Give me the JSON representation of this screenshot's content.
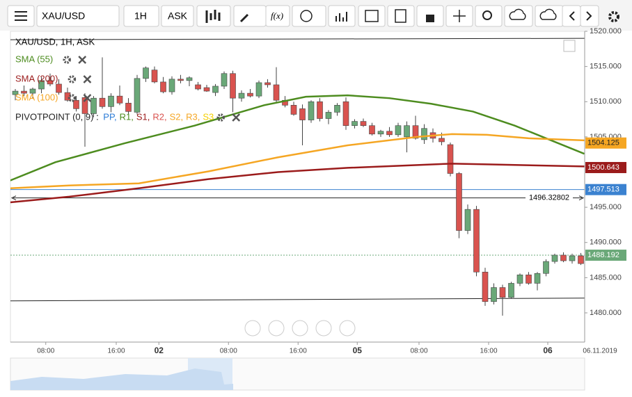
{
  "toolbar": {
    "symbol": "XAU/USD",
    "interval": "1H",
    "side": "ASK",
    "fx": "f(x)"
  },
  "chart_data": {
    "type": "candlestick",
    "title": "XAU/USD, 1H, ASK",
    "up_color": "#6aa878",
    "down_color": "#d9534f",
    "candles": [
      [
        1511.0,
        1511.8,
        1510.2,
        1511.5
      ],
      [
        1511.5,
        1512.3,
        1510.8,
        1511.2
      ],
      [
        1511.2,
        1512.0,
        1510.5,
        1511.8
      ],
      [
        1511.8,
        1513.5,
        1511.2,
        1513.0
      ],
      [
        1513.0,
        1514.0,
        1512.2,
        1512.5
      ],
      [
        1512.5,
        1513.2,
        1511.0,
        1511.3
      ],
      [
        1511.3,
        1512.0,
        1510.0,
        1510.2
      ],
      [
        1510.2,
        1510.8,
        1508.6,
        1509.0
      ],
      [
        1510.6,
        1511.2,
        1503.6,
        1508.3
      ],
      [
        1508.3,
        1510.8,
        1507.8,
        1510.5
      ],
      [
        1510.5,
        1516.3,
        1509.0,
        1509.3
      ],
      [
        1509.3,
        1511.2,
        1508.5,
        1510.8
      ],
      [
        1510.8,
        1512.3,
        1509.5,
        1509.8
      ],
      [
        1509.8,
        1510.5,
        1508.2,
        1508.6
      ],
      [
        1508.5,
        1513.8,
        1508.2,
        1513.3
      ],
      [
        1513.3,
        1515.0,
        1512.8,
        1514.8
      ],
      [
        1514.5,
        1515.0,
        1512.6,
        1512.8
      ],
      [
        1512.8,
        1513.5,
        1511.2,
        1511.4
      ],
      [
        1511.4,
        1513.6,
        1511.0,
        1513.2
      ],
      [
        1513.2,
        1513.8,
        1512.6,
        1513.0
      ],
      [
        1513.0,
        1513.6,
        1512.2,
        1513.4
      ],
      [
        1512.4,
        1512.8,
        1511.6,
        1511.8
      ],
      [
        1512.0,
        1512.4,
        1511.4,
        1511.5
      ],
      [
        1511.3,
        1512.5,
        1510.8,
        1512.2
      ],
      [
        1512.2,
        1514.3,
        1511.8,
        1514.0
      ],
      [
        1514.0,
        1514.4,
        1508.5,
        1510.5
      ],
      [
        1510.5,
        1511.6,
        1510.0,
        1511.2
      ],
      [
        1511.2,
        1511.8,
        1510.6,
        1510.8
      ],
      [
        1510.8,
        1513.0,
        1510.5,
        1512.7
      ],
      [
        1512.7,
        1513.2,
        1512.0,
        1512.4
      ],
      [
        1512.4,
        1514.9,
        1509.8,
        1510.2
      ],
      [
        1510.2,
        1510.8,
        1509.2,
        1509.5
      ],
      [
        1509.5,
        1510.0,
        1508.0,
        1508.2
      ],
      [
        1509.0,
        1509.6,
        1503.8,
        1507.4
      ],
      [
        1507.4,
        1510.2,
        1507.0,
        1510.0
      ],
      [
        1510.0,
        1510.5,
        1507.2,
        1507.6
      ],
      [
        1507.6,
        1508.8,
        1506.8,
        1508.5
      ],
      [
        1508.5,
        1509.8,
        1508.0,
        1509.5
      ],
      [
        1510.0,
        1510.6,
        1506.0,
        1506.6
      ],
      [
        1506.6,
        1507.5,
        1506.2,
        1507.2
      ],
      [
        1507.2,
        1507.6,
        1506.4,
        1506.6
      ],
      [
        1506.6,
        1507.0,
        1505.2,
        1505.4
      ],
      [
        1505.4,
        1506.0,
        1505.0,
        1505.8
      ],
      [
        1505.8,
        1506.4,
        1505.0,
        1505.3
      ],
      [
        1505.3,
        1507.0,
        1505.0,
        1506.6
      ],
      [
        1505.0,
        1507.2,
        1502.8,
        1506.6
      ],
      [
        1506.6,
        1508.0,
        1504.6,
        1504.8
      ],
      [
        1504.6,
        1506.8,
        1504.0,
        1506.2
      ],
      [
        1505.6,
        1506.2,
        1504.2,
        1504.8
      ],
      [
        1504.8,
        1505.6,
        1503.8,
        1504.3
      ],
      [
        1503.9,
        1504.2,
        1499.4,
        1499.8
      ],
      [
        1499.8,
        1500.0,
        1490.6,
        1491.7
      ],
      [
        1491.7,
        1495.4,
        1491.2,
        1494.7
      ],
      [
        1494.7,
        1495.2,
        1485.2,
        1485.8
      ],
      [
        1485.8,
        1486.4,
        1481.0,
        1481.6
      ],
      [
        1481.6,
        1484.2,
        1481.2,
        1483.6
      ],
      [
        1483.6,
        1484.0,
        1479.6,
        1482.2
      ],
      [
        1482.2,
        1484.4,
        1482.0,
        1484.2
      ],
      [
        1484.2,
        1485.6,
        1483.8,
        1485.4
      ],
      [
        1485.4,
        1485.8,
        1484.0,
        1484.2
      ],
      [
        1484.2,
        1485.8,
        1483.2,
        1485.6
      ],
      [
        1485.6,
        1487.6,
        1485.2,
        1487.3
      ],
      [
        1487.3,
        1488.4,
        1487.0,
        1488.2
      ],
      [
        1488.2,
        1488.6,
        1487.2,
        1487.4
      ],
      [
        1487.4,
        1488.4,
        1487.0,
        1488.1
      ],
      [
        1488.1,
        1488.5,
        1486.8,
        1487.0
      ]
    ],
    "series": [
      {
        "name": "SMA (55)",
        "color": "#4d8c1f",
        "price_tag": null,
        "x": [
          -0.6,
          4.6,
          12.6,
          20.6,
          28.6,
          33.4,
          38.2,
          43.0,
          47.8,
          52.6,
          57.4,
          61.4,
          65.4
        ],
        "values": [
          1498.8,
          1501.4,
          1504.1,
          1506.6,
          1509.5,
          1510.7,
          1510.9,
          1510.5,
          1509.7,
          1508.6,
          1506.6,
          1504.6,
          1502.6
        ]
      },
      {
        "name": "SMA (200)",
        "color": "#9b1b1b",
        "price_tag": 1500.643,
        "x": [
          -0.6,
          6.2,
          14.2,
          22.2,
          30.2,
          38.2,
          46.2,
          50.2,
          54.2,
          65.4
        ],
        "values": [
          1495.7,
          1496.5,
          1497.7,
          1499.0,
          1500.0,
          1500.6,
          1501.0,
          1501.2,
          1501.1,
          1500.8
        ]
      },
      {
        "name": "SMA (100)",
        "color": "#f5a623",
        "price_tag": 1504.125,
        "x": [
          -0.6,
          6.2,
          14.2,
          22.2,
          30.2,
          38.2,
          46.2,
          50.2,
          54.2,
          59.0,
          65.4
        ],
        "values": [
          1497.7,
          1498.1,
          1498.4,
          1500.1,
          1502.1,
          1503.8,
          1505.0,
          1505.4,
          1505.3,
          1504.8,
          1504.5
        ]
      }
    ],
    "pivot": {
      "name": "PIVOTPOINT (0, 9)",
      "sep": " : ",
      "items": [
        {
          "label": "PP,",
          "color": "#2b7bd6"
        },
        {
          "label": "R1,",
          "color": "#4d8c1f"
        },
        {
          "label": "S1,",
          "color": "#9b1b1b"
        },
        {
          "label": "R2,",
          "color": "#d9534f"
        },
        {
          "label": "S2,",
          "color": "#f5a623"
        },
        {
          "label": "R3,",
          "color": "#f5a623"
        },
        {
          "label": "S3",
          "color": "#f5d000"
        }
      ]
    },
    "hline": {
      "value": 1497.513,
      "color": "#3b82d0"
    },
    "last_price": {
      "value": 1488.192,
      "color": "#6aa878"
    },
    "measure": {
      "value": 1496.32802
    },
    "trendlines": [
      {
        "x": [
          -0.6,
          65.4
        ],
        "values": [
          1518.8,
          1519.0
        ]
      },
      {
        "x": [
          -0.6,
          65.4
        ],
        "values": [
          1481.7,
          1482.1
        ]
      }
    ],
    "ylim": [
      1475.85,
      1520
    ],
    "yticks": [
      {
        "value": 1520,
        "label": "1520.000"
      },
      {
        "value": 1515,
        "label": "1515.000"
      },
      {
        "value": 1510,
        "label": "1510.000"
      },
      {
        "value": 1505,
        "label": "1505.000"
      },
      {
        "value": 1495,
        "label": "1495.000"
      },
      {
        "value": 1490,
        "label": "1490.000"
      },
      {
        "value": 1485,
        "label": "1485.000"
      },
      {
        "value": 1480,
        "label": "1480.000"
      }
    ],
    "xticks": [
      {
        "value": 3.5,
        "label": "08:00"
      },
      {
        "value": 11.6,
        "label": "16:00"
      },
      {
        "value": 16.5,
        "label": "02"
      },
      {
        "value": 24.5,
        "label": "08:00"
      },
      {
        "value": 32.5,
        "label": "16:00"
      },
      {
        "value": 39.3,
        "label": "05"
      },
      {
        "value": 46.4,
        "label": "08:00"
      },
      {
        "value": 54.4,
        "label": "16:00"
      },
      {
        "value": 61.2,
        "label": "06"
      }
    ],
    "date_label": "06.11.2019"
  }
}
